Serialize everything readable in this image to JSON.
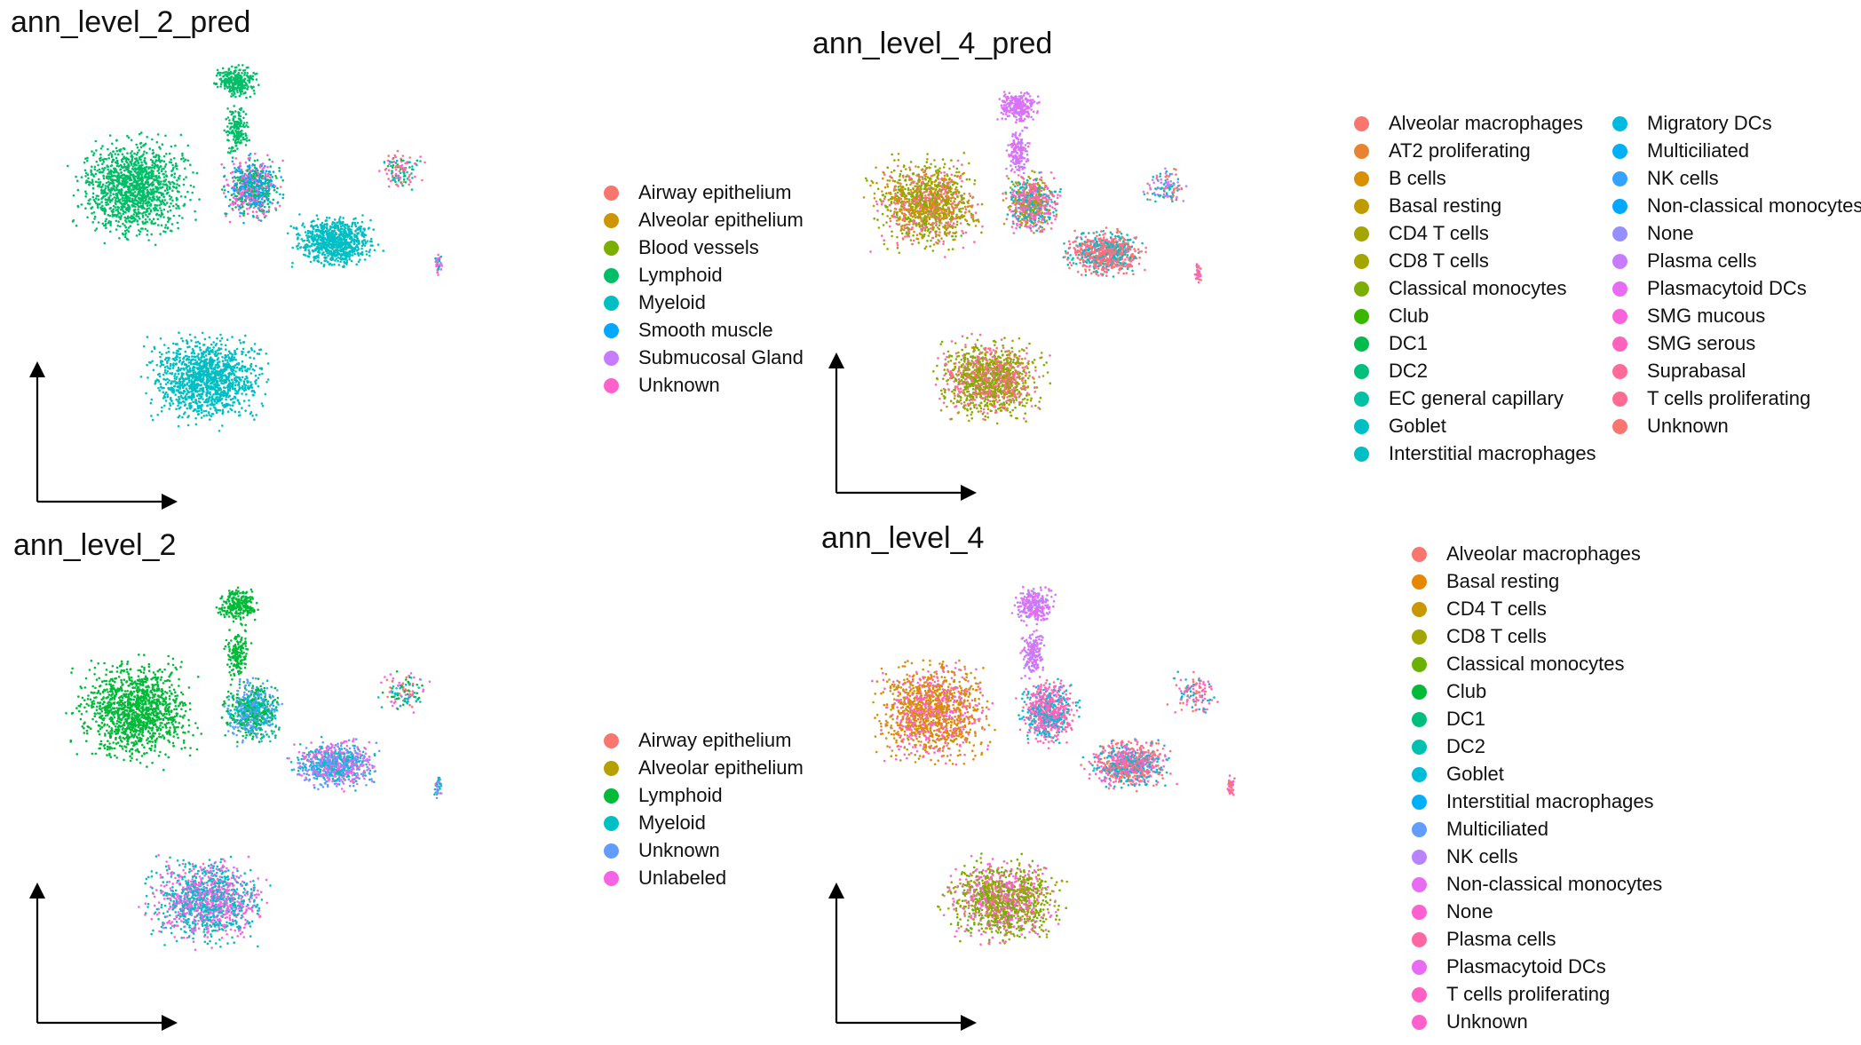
{
  "chart_data": [
    {
      "type": "scatter",
      "title": "ann_level_2_pred",
      "legend": [
        {
          "label": "Airway epithelium",
          "color": "#F8766D"
        },
        {
          "label": "Alveolar epithelium",
          "color": "#CD9600"
        },
        {
          "label": "Blood vessels",
          "color": "#7CAE00"
        },
        {
          "label": "Lymphoid",
          "color": "#00BE67"
        },
        {
          "label": "Myeloid",
          "color": "#00BFC4"
        },
        {
          "label": "Smooth muscle",
          "color": "#00A9FF"
        },
        {
          "label": "Submucosal Gland",
          "color": "#C77CFF"
        },
        {
          "label": "Unknown",
          "color": "#FF61CC"
        }
      ],
      "legend_placement": "right",
      "grid": false
    },
    {
      "type": "scatter",
      "title": "ann_level_4_pred",
      "legend": [
        {
          "label": "Alveolar macrophages",
          "color": "#F8766D"
        },
        {
          "label": "AT2 proliferating",
          "color": "#EA8331"
        },
        {
          "label": "B cells",
          "color": "#D89000"
        },
        {
          "label": "Basal resting",
          "color": "#C09B00"
        },
        {
          "label": "CD4 T cells",
          "color": "#A3A500"
        },
        {
          "label": "CD8 T cells",
          "color": "#A3A500"
        },
        {
          "label": "Classical monocytes",
          "color": "#7CAE00"
        },
        {
          "label": "Club",
          "color": "#39B600"
        },
        {
          "label": "DC1",
          "color": "#00BB4E"
        },
        {
          "label": "DC2",
          "color": "#00BF7D"
        },
        {
          "label": "EC general capillary",
          "color": "#00C1A3"
        },
        {
          "label": "Goblet",
          "color": "#00BFC4"
        },
        {
          "label": "Interstitial macrophages",
          "color": "#00BFC4"
        },
        {
          "label": "Migratory DCs",
          "color": "#00BAE0"
        },
        {
          "label": "Multiciliated",
          "color": "#00B0F6"
        },
        {
          "label": "NK cells",
          "color": "#35A2FF"
        },
        {
          "label": "Non-classical monocytes",
          "color": "#00A9FF"
        },
        {
          "label": "None",
          "color": "#9590FF"
        },
        {
          "label": "Plasma cells",
          "color": "#C77CFF"
        },
        {
          "label": "Plasmacytoid DCs",
          "color": "#E76BF3"
        },
        {
          "label": "SMG mucous",
          "color": "#FA62DB"
        },
        {
          "label": "SMG serous",
          "color": "#FF62BC"
        },
        {
          "label": "Suprabasal",
          "color": "#FF6A98"
        },
        {
          "label": "T cells proliferating",
          "color": "#FF6C91"
        },
        {
          "label": "Unknown",
          "color": "#F8766D"
        }
      ],
      "legend_placement": "right",
      "grid": false
    },
    {
      "type": "scatter",
      "title": "ann_level_2",
      "legend": [
        {
          "label": "Airway epithelium",
          "color": "#F8766D"
        },
        {
          "label": "Alveolar epithelium",
          "color": "#B79F00"
        },
        {
          "label": "Lymphoid",
          "color": "#00BA38"
        },
        {
          "label": "Myeloid",
          "color": "#00BFC4"
        },
        {
          "label": "Unknown",
          "color": "#619CFF"
        },
        {
          "label": "Unlabeled",
          "color": "#F564E3"
        }
      ],
      "legend_placement": "right",
      "grid": false
    },
    {
      "type": "scatter",
      "title": "ann_level_4",
      "legend": [
        {
          "label": "Alveolar macrophages",
          "color": "#F8766D"
        },
        {
          "label": "Basal resting",
          "color": "#E58700"
        },
        {
          "label": "CD4 T cells",
          "color": "#C99800"
        },
        {
          "label": "CD8 T cells",
          "color": "#A3A500"
        },
        {
          "label": "Classical monocytes",
          "color": "#6BB100"
        },
        {
          "label": "Club",
          "color": "#00BA38"
        },
        {
          "label": "DC1",
          "color": "#00BF7D"
        },
        {
          "label": "DC2",
          "color": "#00C0AF"
        },
        {
          "label": "Goblet",
          "color": "#00BCD8"
        },
        {
          "label": "Interstitial macrophages",
          "color": "#00B0F6"
        },
        {
          "label": "Multiciliated",
          "color": "#619CFF"
        },
        {
          "label": "NK cells",
          "color": "#B983FF"
        },
        {
          "label": "Non-classical monocytes",
          "color": "#E76BF3"
        },
        {
          "label": "None",
          "color": "#FD61D1"
        },
        {
          "label": "Plasma cells",
          "color": "#FF67A4"
        },
        {
          "label": "Plasmacytoid DCs",
          "color": "#E76BF3"
        },
        {
          "label": "T cells proliferating",
          "color": "#FF61C3"
        },
        {
          "label": "Unknown",
          "color": "#FF61CC"
        }
      ],
      "legend_placement": "right",
      "grid": false
    }
  ]
}
